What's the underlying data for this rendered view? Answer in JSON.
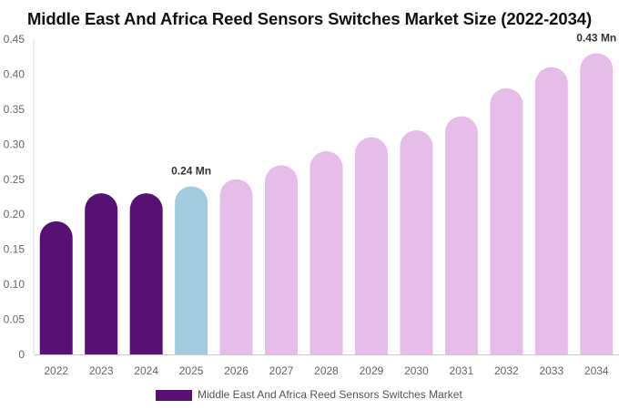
{
  "chart_data": {
    "type": "bar",
    "title": "Middle East And Africa Reed Sensors Switches Market Size (2022-2034)",
    "categories": [
      "2022",
      "2023",
      "2024",
      "2025",
      "2026",
      "2027",
      "2028",
      "2029",
      "2030",
      "2031",
      "2032",
      "2033",
      "2034"
    ],
    "series": [
      {
        "name": "Middle East And Africa Reed Sensors Switches Market",
        "values": [
          0.19,
          0.23,
          0.23,
          0.24,
          0.25,
          0.27,
          0.29,
          0.31,
          0.32,
          0.34,
          0.38,
          0.41,
          0.43
        ]
      }
    ],
    "ylim": [
      0,
      0.45
    ],
    "yticks": [
      "0",
      "0.05",
      "0.10",
      "0.15",
      "0.20",
      "0.25",
      "0.30",
      "0.35",
      "0.40",
      "0.45"
    ],
    "ytick_values": [
      0,
      0.05,
      0.1,
      0.15,
      0.2,
      0.25,
      0.3,
      0.35,
      0.4,
      0.45
    ],
    "data_labels": [
      {
        "index": 3,
        "text": "0.24 Mn"
      },
      {
        "index": 12,
        "text": "0.43 Mn"
      }
    ],
    "bar_colors": [
      "#561173",
      "#561173",
      "#561173",
      "#a3cbe0",
      "#e6bde8",
      "#e6bde8",
      "#e6bde8",
      "#e6bde8",
      "#e6bde8",
      "#e6bde8",
      "#e6bde8",
      "#e6bde8",
      "#e6bde8"
    ],
    "legend": {
      "position": "bottom-center",
      "color": "#561173"
    },
    "grid": false
  }
}
